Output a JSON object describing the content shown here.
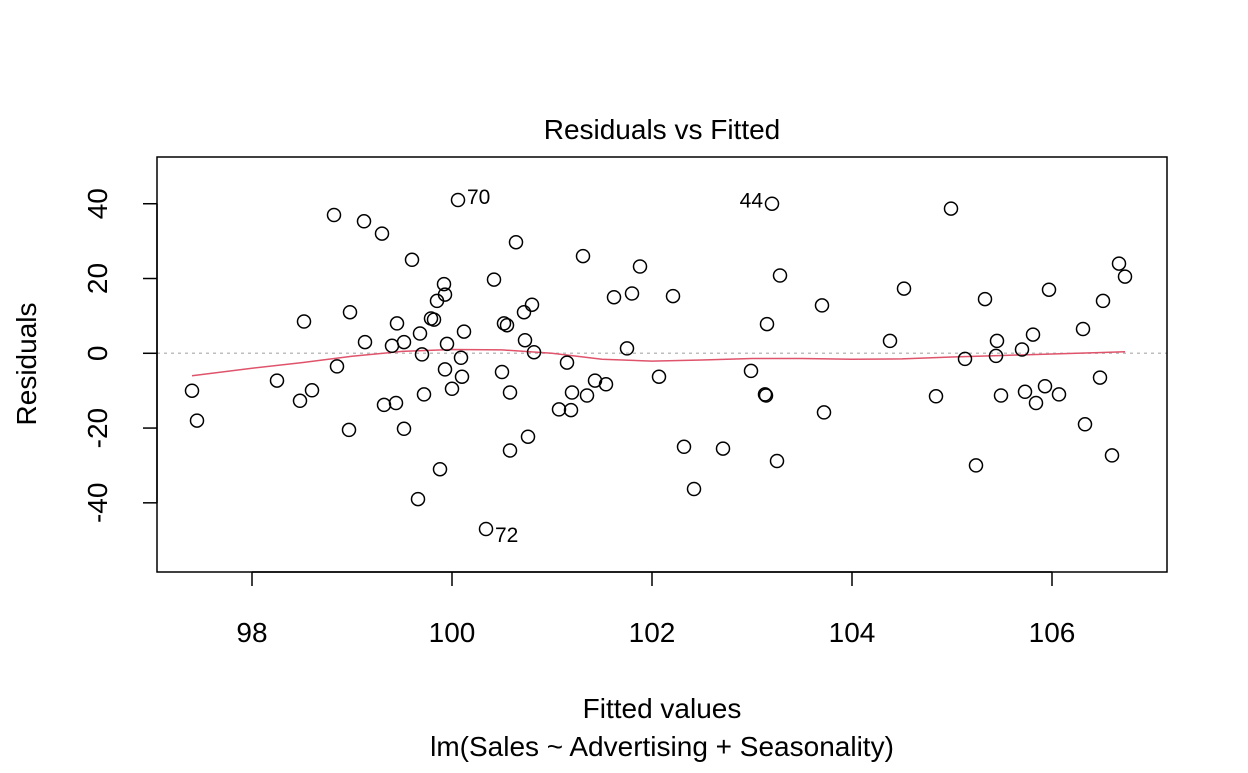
{
  "chart_data": {
    "type": "scatter",
    "title": "Residuals vs Fitted",
    "xlabel": "Fitted values",
    "subtitle": "lm(Sales ~ Advertising + Seasonality)",
    "ylabel": "Residuals",
    "xlim": [
      97.05,
      107.15
    ],
    "ylim": [
      -58.5,
      52.5
    ],
    "x_ticks": [
      98,
      100,
      102,
      104,
      106
    ],
    "y_ticks": [
      -40,
      -20,
      0,
      20,
      40
    ],
    "grid": false,
    "reference_line": {
      "y": 0,
      "style": "dotted",
      "color": "#bebebe"
    },
    "colors": {
      "points": "#000000",
      "smoother": "#DF536B",
      "frame": "#000000"
    },
    "labeled_points": [
      {
        "label": "70",
        "x": 100.06,
        "y": 41.0,
        "side": "right"
      },
      {
        "label": "44",
        "x": 103.2,
        "y": 40.0,
        "side": "left"
      },
      {
        "label": "72",
        "x": 100.34,
        "y": -47.0,
        "side": "right"
      }
    ],
    "points": [
      {
        "x": 97.4,
        "y": -10.0
      },
      {
        "x": 97.45,
        "y": -18.0
      },
      {
        "x": 98.25,
        "y": -7.3
      },
      {
        "x": 98.48,
        "y": -12.7
      },
      {
        "x": 98.52,
        "y": 8.5
      },
      {
        "x": 98.6,
        "y": -9.9
      },
      {
        "x": 98.82,
        "y": 37.0
      },
      {
        "x": 98.85,
        "y": -3.5
      },
      {
        "x": 98.97,
        "y": -20.5
      },
      {
        "x": 98.98,
        "y": 11.0
      },
      {
        "x": 99.12,
        "y": 35.3
      },
      {
        "x": 99.13,
        "y": 3.0
      },
      {
        "x": 99.3,
        "y": 32.0
      },
      {
        "x": 99.32,
        "y": -13.8
      },
      {
        "x": 99.4,
        "y": 2.0
      },
      {
        "x": 99.44,
        "y": -13.3
      },
      {
        "x": 99.45,
        "y": 8.0
      },
      {
        "x": 99.52,
        "y": -20.2
      },
      {
        "x": 99.52,
        "y": 3.0
      },
      {
        "x": 99.6,
        "y": 25.0
      },
      {
        "x": 99.66,
        "y": -39.0
      },
      {
        "x": 99.68,
        "y": 5.3
      },
      {
        "x": 99.7,
        "y": -0.3
      },
      {
        "x": 99.72,
        "y": -11.0
      },
      {
        "x": 99.79,
        "y": 9.3
      },
      {
        "x": 99.82,
        "y": 9.0
      },
      {
        "x": 99.85,
        "y": 14.0
      },
      {
        "x": 99.88,
        "y": -31.0
      },
      {
        "x": 99.92,
        "y": 18.5
      },
      {
        "x": 99.93,
        "y": 15.7
      },
      {
        "x": 99.93,
        "y": -4.3
      },
      {
        "x": 99.95,
        "y": 2.5
      },
      {
        "x": 100.0,
        "y": -9.5
      },
      {
        "x": 100.06,
        "y": 41.0
      },
      {
        "x": 100.09,
        "y": -1.2
      },
      {
        "x": 100.1,
        "y": -6.3
      },
      {
        "x": 100.12,
        "y": 5.8
      },
      {
        "x": 100.34,
        "y": -47.0
      },
      {
        "x": 100.42,
        "y": 19.7
      },
      {
        "x": 100.5,
        "y": -5.0
      },
      {
        "x": 100.52,
        "y": 8.0
      },
      {
        "x": 100.55,
        "y": 7.5
      },
      {
        "x": 100.58,
        "y": -10.5
      },
      {
        "x": 100.58,
        "y": -26.0
      },
      {
        "x": 100.64,
        "y": 29.7
      },
      {
        "x": 100.72,
        "y": 11.0
      },
      {
        "x": 100.73,
        "y": 3.5
      },
      {
        "x": 100.76,
        "y": -22.3
      },
      {
        "x": 100.8,
        "y": 13.0
      },
      {
        "x": 100.82,
        "y": 0.3
      },
      {
        "x": 101.07,
        "y": -15.0
      },
      {
        "x": 101.15,
        "y": -2.5
      },
      {
        "x": 101.19,
        "y": -15.2
      },
      {
        "x": 101.2,
        "y": -10.5
      },
      {
        "x": 101.31,
        "y": 26.0
      },
      {
        "x": 101.35,
        "y": -11.3
      },
      {
        "x": 101.43,
        "y": -7.3
      },
      {
        "x": 101.54,
        "y": -8.3
      },
      {
        "x": 101.62,
        "y": 15.0
      },
      {
        "x": 101.75,
        "y": 1.3
      },
      {
        "x": 101.8,
        "y": 16.0
      },
      {
        "x": 101.88,
        "y": 23.2
      },
      {
        "x": 102.07,
        "y": -6.3
      },
      {
        "x": 102.21,
        "y": 15.3
      },
      {
        "x": 102.32,
        "y": -25.0
      },
      {
        "x": 102.42,
        "y": -36.3
      },
      {
        "x": 102.71,
        "y": -25.5
      },
      {
        "x": 102.99,
        "y": -4.7
      },
      {
        "x": 103.13,
        "y": -11.0
      },
      {
        "x": 103.14,
        "y": -11.3
      },
      {
        "x": 103.15,
        "y": 7.8
      },
      {
        "x": 103.2,
        "y": 40.0
      },
      {
        "x": 103.25,
        "y": -28.8
      },
      {
        "x": 103.28,
        "y": 20.8
      },
      {
        "x": 103.7,
        "y": 12.8
      },
      {
        "x": 103.72,
        "y": -15.8
      },
      {
        "x": 104.38,
        "y": 3.3
      },
      {
        "x": 104.52,
        "y": 17.3
      },
      {
        "x": 104.84,
        "y": -11.5
      },
      {
        "x": 104.99,
        "y": 38.7
      },
      {
        "x": 105.13,
        "y": -1.5
      },
      {
        "x": 105.24,
        "y": -30.0
      },
      {
        "x": 105.33,
        "y": 14.5
      },
      {
        "x": 105.44,
        "y": -0.7
      },
      {
        "x": 105.45,
        "y": 3.3
      },
      {
        "x": 105.49,
        "y": -11.3
      },
      {
        "x": 105.7,
        "y": 1.0
      },
      {
        "x": 105.73,
        "y": -10.3
      },
      {
        "x": 105.81,
        "y": 5.0
      },
      {
        "x": 105.84,
        "y": -13.3
      },
      {
        "x": 105.93,
        "y": -8.8
      },
      {
        "x": 105.97,
        "y": 17.0
      },
      {
        "x": 106.07,
        "y": -11.0
      },
      {
        "x": 106.31,
        "y": 6.5
      },
      {
        "x": 106.33,
        "y": -19.0
      },
      {
        "x": 106.48,
        "y": -6.5
      },
      {
        "x": 106.51,
        "y": 14.0
      },
      {
        "x": 106.6,
        "y": -27.3
      },
      {
        "x": 106.67,
        "y": 24.0
      },
      {
        "x": 106.73,
        "y": 20.5
      }
    ],
    "smoother": [
      {
        "x": 97.4,
        "y": -6.0
      },
      {
        "x": 98.0,
        "y": -4.0
      },
      {
        "x": 98.5,
        "y": -2.5
      },
      {
        "x": 99.0,
        "y": -0.8
      },
      {
        "x": 99.5,
        "y": 0.5
      },
      {
        "x": 100.0,
        "y": 1.0
      },
      {
        "x": 100.5,
        "y": 0.9
      },
      {
        "x": 101.0,
        "y": 0.0
      },
      {
        "x": 101.5,
        "y": -1.6
      },
      {
        "x": 102.0,
        "y": -2.1
      },
      {
        "x": 102.5,
        "y": -1.8
      },
      {
        "x": 103.0,
        "y": -1.4
      },
      {
        "x": 103.5,
        "y": -1.4
      },
      {
        "x": 104.0,
        "y": -1.6
      },
      {
        "x": 104.5,
        "y": -1.5
      },
      {
        "x": 105.0,
        "y": -1.0
      },
      {
        "x": 105.5,
        "y": -0.6
      },
      {
        "x": 106.0,
        "y": -0.2
      },
      {
        "x": 106.5,
        "y": 0.2
      },
      {
        "x": 106.73,
        "y": 0.4
      }
    ]
  }
}
